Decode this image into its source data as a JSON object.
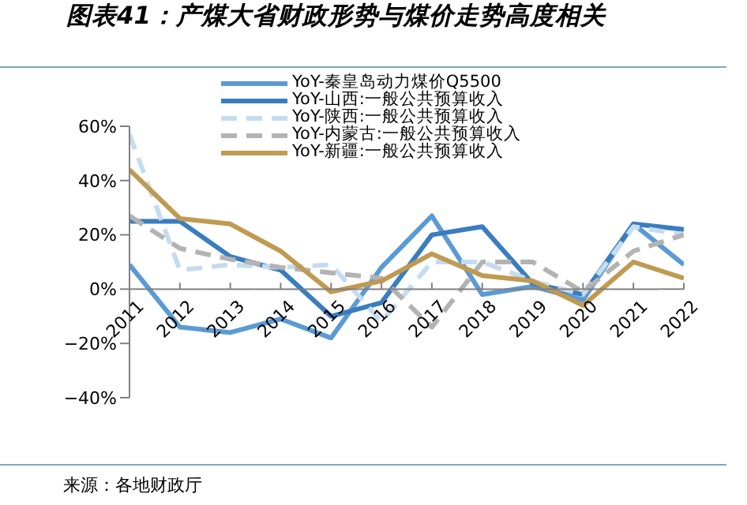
{
  "chart_data": {
    "type": "line",
    "title": "图表41：产煤大省财政形势与煤价走势高度相关",
    "annotations": [
      "来源：各地财政厅"
    ],
    "categories": [
      "2011",
      "2012",
      "2013",
      "2014",
      "2015",
      "2016",
      "2017",
      "2018",
      "2019",
      "2020",
      "2021",
      "2022"
    ],
    "series": [
      {
        "name": "YoY-秦皇岛动力煤价Q5500",
        "color": "#5b9bd5",
        "line_style": "solid",
        "values": [
          9,
          -14,
          -16,
          -11,
          -18,
          8,
          27,
          -2,
          1,
          -4,
          24,
          9
        ]
      },
      {
        "name": "YoY-山西:一般公共预算收入",
        "color": "#3a7dbf",
        "line_style": "solid",
        "values": [
          25,
          25,
          12,
          7,
          -10,
          -5,
          20,
          23,
          2,
          -2,
          24,
          22
        ]
      },
      {
        "name": "YoY-陕西:一般公共预算收入",
        "color": "#c5dcf0",
        "line_style": "dashed",
        "values": [
          57,
          7,
          9,
          8,
          9,
          -12,
          10,
          10,
          3,
          -2,
          23,
          20
        ]
      },
      {
        "name": "YoY-内蒙古:一般公共预算收入",
        "color": "#b3b3b3",
        "line_style": "dashed",
        "values": [
          27,
          15,
          11,
          8,
          6,
          4,
          -14,
          10,
          10,
          -1,
          14,
          20
        ]
      },
      {
        "name": "YoY-新疆:一般公共预算收入",
        "color": "#c09a50",
        "line_style": "solid",
        "values": [
          44,
          26,
          24,
          14,
          -1,
          3,
          13,
          5,
          3,
          -6,
          10,
          4
        ]
      }
    ],
    "ylim": [
      -40,
      60
    ],
    "yticks": [
      {
        "value": -40,
        "label": "−40%"
      },
      {
        "value": -20,
        "label": "−20%"
      },
      {
        "value": 0,
        "label": "0%"
      },
      {
        "value": 20,
        "label": "20%"
      },
      {
        "value": 40,
        "label": "40%"
      },
      {
        "value": 60,
        "label": "60%"
      }
    ],
    "grid": false,
    "legend": "top",
    "marker": "none"
  }
}
